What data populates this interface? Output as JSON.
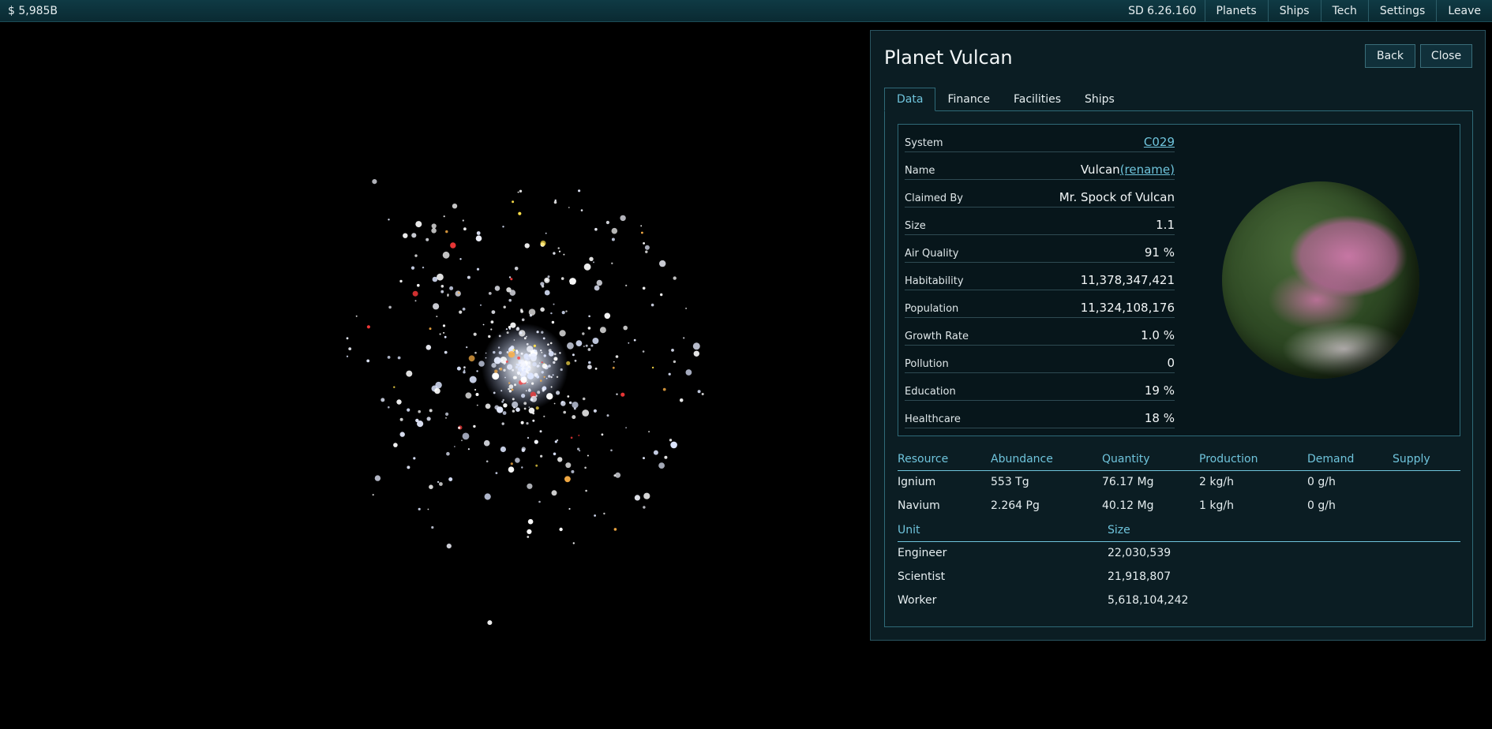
{
  "topbar": {
    "credits": "$ 5,985B",
    "stardate": "SD 6.26.160",
    "nav": [
      "Planets",
      "Ships",
      "Tech",
      "Settings",
      "Leave"
    ]
  },
  "panel": {
    "title": "Planet Vulcan",
    "back_label": "Back",
    "close_label": "Close",
    "tabs": [
      "Data",
      "Finance",
      "Facilities",
      "Ships"
    ],
    "active_tab": "Data",
    "fields": [
      {
        "key": "System",
        "value": "C029",
        "link": true
      },
      {
        "key": "Name",
        "value": "Vulcan",
        "link_text": "(rename)"
      },
      {
        "key": "Claimed By",
        "value": "Mr. Spock of Vulcan"
      },
      {
        "key": "Size",
        "value": "1.1"
      },
      {
        "key": "Air Quality",
        "value": "91 %"
      },
      {
        "key": "Habitability",
        "value": "11,378,347,421"
      },
      {
        "key": "Population",
        "value": "11,324,108,176"
      },
      {
        "key": "Growth Rate",
        "value": "1.0 %"
      },
      {
        "key": "Pollution",
        "value": "0"
      },
      {
        "key": "Education",
        "value": "19 %"
      },
      {
        "key": "Healthcare",
        "value": "18 %"
      }
    ],
    "resources": {
      "headers": [
        "Resource",
        "Abundance",
        "Quantity",
        "Production",
        "Demand",
        "Supply"
      ],
      "rows": [
        [
          "Ignium",
          "553 Tg",
          "76.17 Mg",
          "2 kg/h",
          "0 g/h",
          ""
        ],
        [
          "Navium",
          "2.264 Pg",
          "40.12 Mg",
          "1 kg/h",
          "0 g/h",
          ""
        ]
      ]
    },
    "units": {
      "headers": [
        "Unit",
        "Size"
      ],
      "rows": [
        [
          "Engineer",
          "22,030,539"
        ],
        [
          "Scientist",
          "21,918,807"
        ],
        [
          "Worker",
          "5,618,104,242"
        ]
      ]
    }
  },
  "colors": {
    "accent": "#6fc4dc",
    "panel_bg": "#0b1d23",
    "topbar_bg": "#0f3a44"
  }
}
